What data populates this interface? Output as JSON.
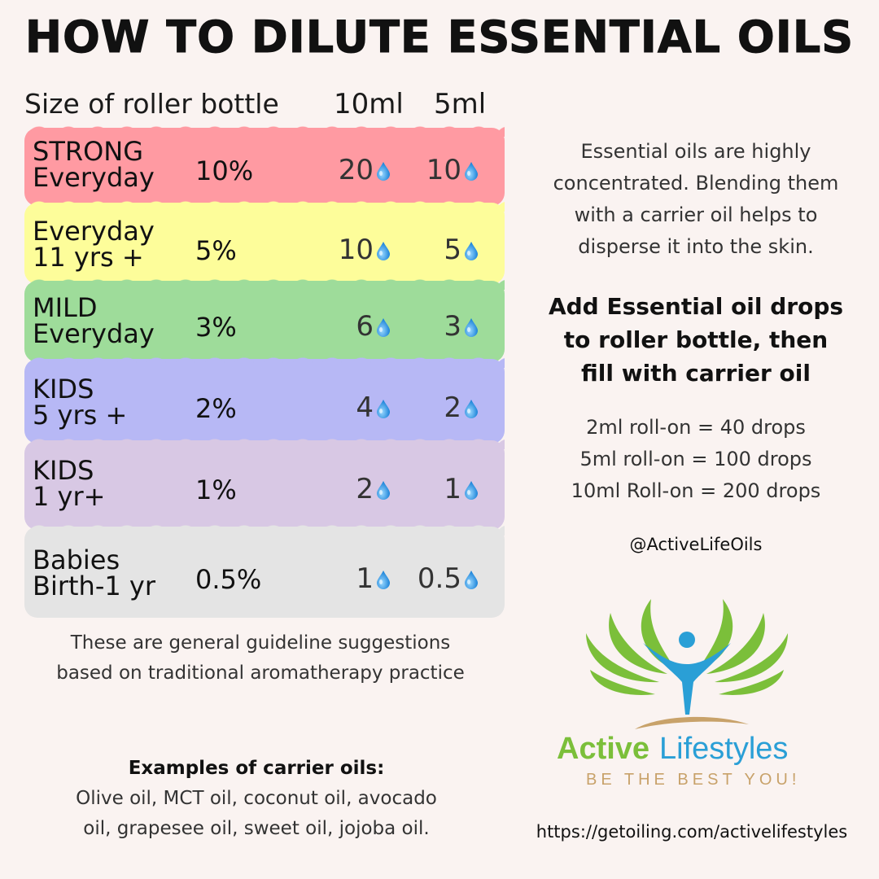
{
  "title": "HOW TO DILUTE ESSENTIAL OILS",
  "header": {
    "size_label": "Size of roller bottle",
    "col_10ml": "10ml",
    "col_5ml": "5ml"
  },
  "rows": [
    {
      "line1": "STRONG",
      "line2": "Everyday",
      "pct": "10%",
      "drops_10ml": "20",
      "drops_5ml": "10",
      "color": "#ff9aa2"
    },
    {
      "line1": "Everyday",
      "line2": "11 yrs +",
      "pct": "5%",
      "drops_10ml": "10",
      "drops_5ml": "5",
      "color": "#fdfd9a"
    },
    {
      "line1": "MILD",
      "line2": "Everyday",
      "pct": "3%",
      "drops_10ml": "6",
      "drops_5ml": "3",
      "color": "#9edc9a"
    },
    {
      "line1": "KIDS",
      "line2": "5 yrs +",
      "pct": "2%",
      "drops_10ml": "4",
      "drops_5ml": "2",
      "color": "#b7b8f5"
    },
    {
      "line1": "KIDS",
      "line2": "1 yr+",
      "pct": "1%",
      "drops_10ml": "2",
      "drops_5ml": "1",
      "color": "#d8c8e4"
    },
    {
      "line1": "Babies",
      "line2": "Birth-1 yr",
      "pct": "0.5%",
      "drops_10ml": "1",
      "drops_5ml": "0.5",
      "color": "#e4e4e4"
    }
  ],
  "intro": {
    "line1": "Essential oils are highly",
    "line2": "concentrated. Blending them",
    "line3": "with a carrier oil helps to",
    "line4": "disperse it into the skin."
  },
  "instruction": {
    "line1": "Add Essential oil drops",
    "line2": "to roller bottle, then",
    "line3": "fill with carrier oil"
  },
  "conversions": {
    "line1": "2ml roll-on = 40 drops",
    "line2": "5ml roll-on = 100 drops",
    "line3": "10ml Roll-on = 200 drops"
  },
  "handle": "@ActiveLifeOils",
  "disclaimer": {
    "line1": "These are general guideline suggestions",
    "line2": "based on traditional aromatherapy practice"
  },
  "carrier": {
    "heading": "Examples of carrier oils:",
    "line1": "Olive oil, MCT oil, coconut oil, avocado",
    "line2": "oil, grapesee oil, sweet oil, jojoba oil."
  },
  "logo": {
    "brand_word1": "Active",
    "brand_word2": "Lifestyles",
    "tagline": "Be the best you!",
    "green": "#7bbf3a",
    "blue": "#2a9fd6",
    "tan": "#c8a26a"
  },
  "url": "https://getoiling.com/activelifestyles",
  "drop_icon": "water-drop-icon"
}
